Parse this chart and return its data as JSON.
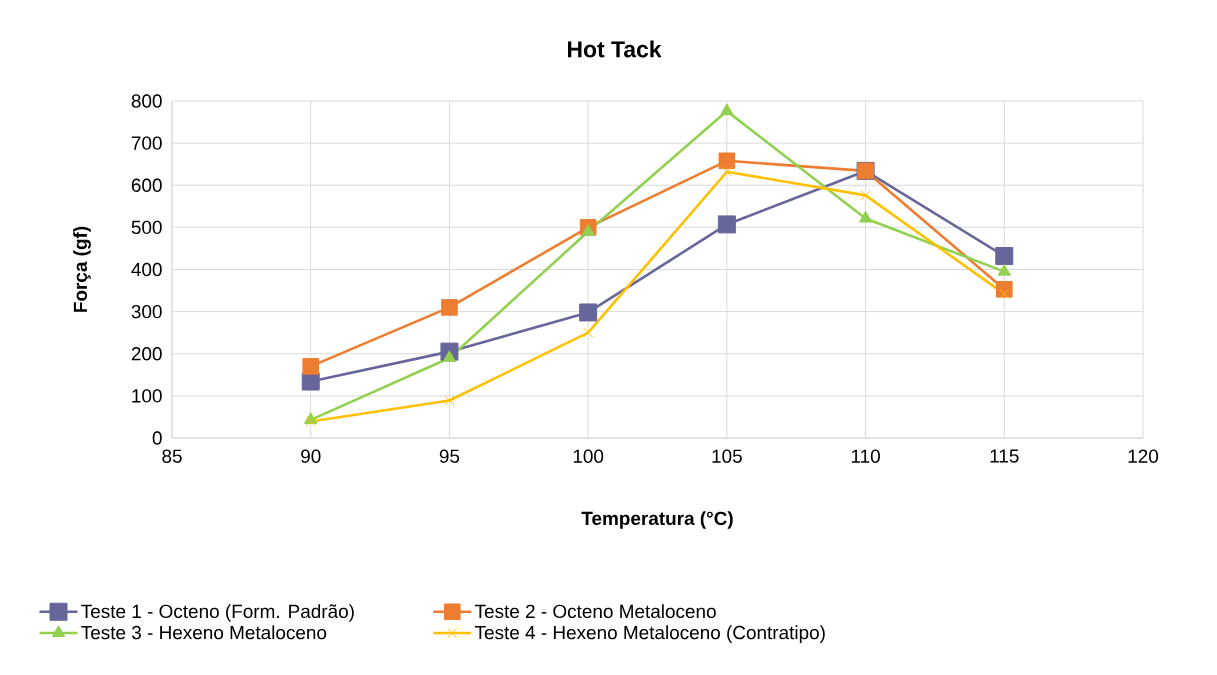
{
  "chart_data": {
    "type": "line",
    "title": "Hot Tack",
    "xlabel": "Temperatura (°C)",
    "ylabel": "Força (gf)",
    "x": [
      90,
      95,
      100,
      105,
      110,
      115
    ],
    "series": [
      {
        "name": "Teste 1 - Octeno (Form. Padrão)",
        "color": "#66669a",
        "marker": "square",
        "values": [
          134,
          205,
          298,
          507,
          634,
          432
        ]
      },
      {
        "name": "Teste 2 - Octeno Metaloceno",
        "color": "#ed7d31",
        "marker": "square",
        "values": [
          170,
          310,
          500,
          658,
          634,
          353
        ]
      },
      {
        "name": "Teste 3 - Hexeno Metaloceno",
        "color": "#92d050",
        "marker": "triangle",
        "values": [
          43,
          190,
          490,
          776,
          521,
          395
        ]
      },
      {
        "name": "Teste 4 - Hexeno Metaloceno (Contratipo)",
        "color": "#ffc000",
        "marker": "cross",
        "values": [
          39,
          89,
          250,
          632,
          576,
          342
        ]
      }
    ],
    "xlim": [
      85,
      120
    ],
    "xticks": [
      85,
      90,
      95,
      100,
      105,
      110,
      115,
      120
    ],
    "ylim": [
      0,
      800
    ],
    "yticks": [
      0,
      100,
      200,
      300,
      400,
      500,
      600,
      700,
      800
    ],
    "grid": true,
    "legend": "bottom",
    "line_style": "solid"
  }
}
